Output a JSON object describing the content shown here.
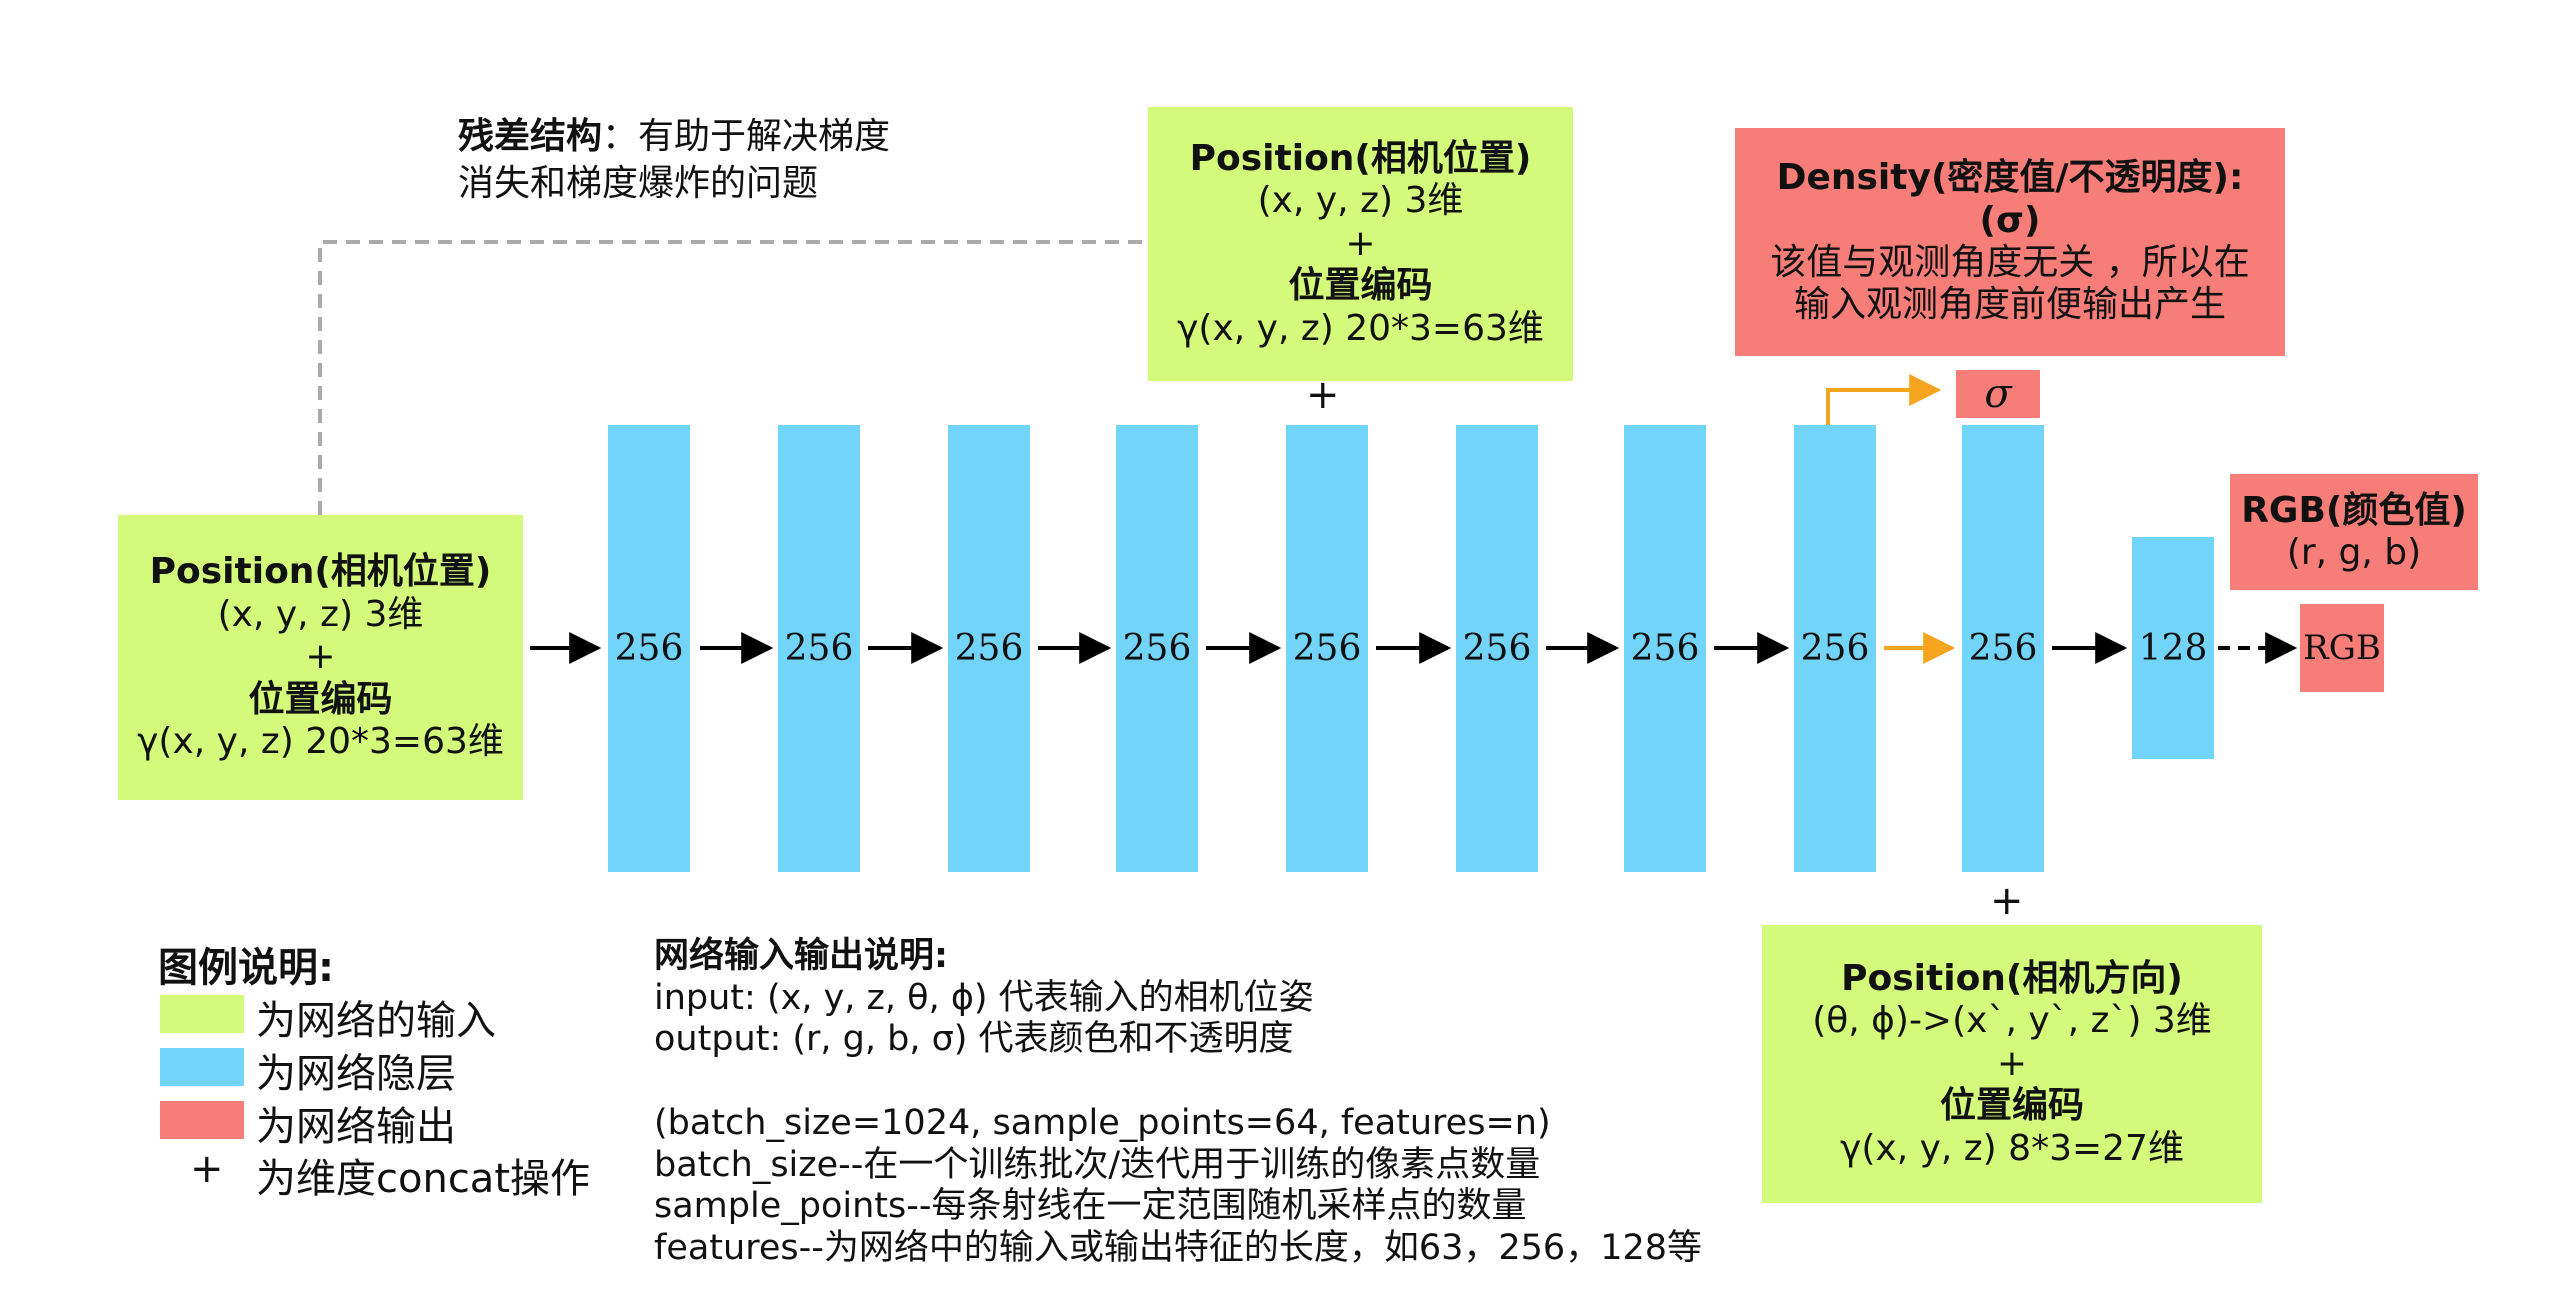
{
  "residual_note": [
    "残差结构：有助于解决梯度",
    "消失和梯度爆炸的问题"
  ],
  "input_box_left": {
    "lines": [
      "Position(相机位置)",
      "(x, y, z) 3维",
      "+",
      "位置编码",
      "γ(x, y, z)  20*3=63维"
    ]
  },
  "input_box_top": {
    "lines": [
      "Position(相机位置)",
      "(x, y, z) 3维",
      "+",
      "位置编码",
      "γ(x, y, z)  20*3=63维"
    ]
  },
  "input_box_dir": {
    "lines": [
      "Position(相机方向)",
      "(θ, ϕ)->(x`, y`, z`) 3维",
      "+",
      "位置编码",
      "γ(x, y, z)  8*3=27维"
    ]
  },
  "density_box": {
    "lines": [
      "Density(密度值/不透明度):",
      "(σ)",
      "该值与观测角度无关 ，所以在",
      "输入观测角度前便输出产生"
    ]
  },
  "rgb_label_box": {
    "lines": [
      "RGB(颜色值)",
      "(r, g, b)"
    ]
  },
  "sigma_output": "σ",
  "rgb_output": "RGB",
  "plus_signs": [
    "+",
    "+"
  ],
  "layers": [
    "256",
    "256",
    "256",
    "256",
    "256",
    "256",
    "256",
    "256",
    "256",
    "128"
  ],
  "legend": {
    "title": "图例说明:",
    "items": [
      {
        "label": "为网络的输入",
        "color": "#d3fa7a"
      },
      {
        "label": "为网络隐层",
        "color": "#73d4fa"
      },
      {
        "label": "为网络输出",
        "color": "#f77d78"
      }
    ],
    "plus_symbol": "+",
    "plus_label": "为维度concat操作"
  },
  "io_notes": {
    "title": "网络输入输出说明:",
    "lines": [
      "input: (x, y, z, θ, ϕ) 代表输入的相机位姿",
      "output: (r, g, b, σ) 代表颜色和不透明度",
      "",
      "(batch_size=1024, sample_points=64, features=n)",
      "batch_size--在一个训练批次/迭代用于训练的像素点数量",
      "sample_points--每条射线在一定范围随机采样点的数量",
      "features--为网络中的输入或输出特征的长度，如63，256，128等"
    ]
  },
  "colors": {
    "input": "#d3fa7a",
    "hidden": "#73d4fa",
    "output": "#f77d78",
    "arrow": "#000000",
    "orange_arrow": "#f5a41e",
    "residual_line": "#aaaaaa"
  }
}
